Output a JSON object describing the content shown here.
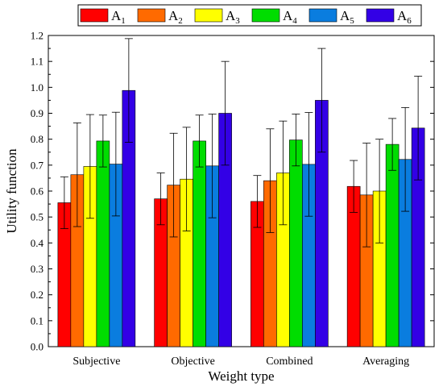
{
  "chart_data": {
    "type": "bar",
    "title": "",
    "xlabel": "Weight type",
    "ylabel": "Utility function",
    "ylim": [
      0,
      1.2
    ],
    "yticks": [
      "0.0",
      "0.1",
      "0.2",
      "0.3",
      "0.4",
      "0.5",
      "0.6",
      "0.7",
      "0.8",
      "0.9",
      "1.0",
      "1.1",
      "1.2"
    ],
    "categories": [
      "Subjective",
      "Objective",
      "Combined",
      "Averaging"
    ],
    "legend_position": "top",
    "grid": false,
    "error_bars": true,
    "series": [
      {
        "name": "A",
        "sub": "1",
        "color": "#ff0000",
        "values": [
          0.555,
          0.57,
          0.56,
          0.618
        ],
        "errors": [
          0.1,
          0.1,
          0.1,
          0.1
        ]
      },
      {
        "name": "A",
        "sub": "2",
        "color": "#ff6a00",
        "values": [
          0.663,
          0.623,
          0.64,
          0.585
        ],
        "errors": [
          0.2,
          0.2,
          0.2,
          0.2
        ]
      },
      {
        "name": "A",
        "sub": "3",
        "color": "#ffff00",
        "values": [
          0.695,
          0.646,
          0.67,
          0.6
        ],
        "errors": [
          0.2,
          0.2,
          0.2,
          0.2
        ]
      },
      {
        "name": "A",
        "sub": "4",
        "color": "#00dd00",
        "values": [
          0.793,
          0.793,
          0.797,
          0.78
        ],
        "errors": [
          0.1,
          0.1,
          0.1,
          0.1
        ]
      },
      {
        "name": "A",
        "sub": "5",
        "color": "#0a7ddf",
        "values": [
          0.704,
          0.697,
          0.703,
          0.722
        ],
        "errors": [
          0.2,
          0.2,
          0.2,
          0.2
        ]
      },
      {
        "name": "A",
        "sub": "6",
        "color": "#3300e6",
        "values": [
          0.988,
          0.9,
          0.95,
          0.843
        ],
        "errors": [
          0.2,
          0.2,
          0.2,
          0.2
        ]
      }
    ]
  }
}
